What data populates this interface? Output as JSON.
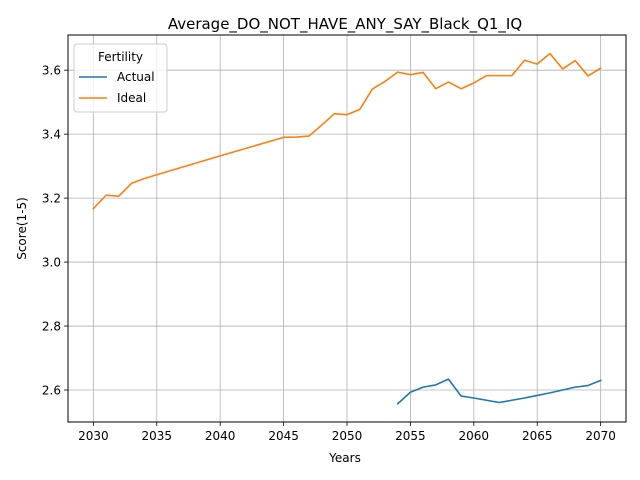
{
  "chart_data": {
    "type": "line",
    "title": "Average_DO_NOT_HAVE_ANY_SAY_Black_Q1_IQ",
    "xlabel": "Years",
    "ylabel": "Score(1-5)",
    "xlim": [
      2028,
      2072
    ],
    "ylim": [
      2.5,
      3.71
    ],
    "xticks": [
      2030,
      2035,
      2040,
      2045,
      2050,
      2055,
      2060,
      2065,
      2070
    ],
    "xtick_labels": [
      "2030",
      "2035",
      "2040",
      "2045",
      "2050",
      "2055",
      "2060",
      "2065",
      "2070"
    ],
    "yticks": [
      2.6,
      2.8,
      3.0,
      3.2,
      3.4,
      3.6
    ],
    "ytick_labels": [
      "2.6",
      "2.8",
      "3.0",
      "3.2",
      "3.4",
      "3.6"
    ],
    "grid": true,
    "legend": {
      "title": "Fertility",
      "position": "top-left"
    },
    "series": [
      {
        "name": "Actual",
        "color": "#1f77b4",
        "points": [
          [
            2054,
            2.557
          ],
          [
            2055,
            2.593
          ],
          [
            2056,
            2.609
          ],
          [
            2057,
            2.616
          ],
          [
            2058,
            2.634
          ],
          [
            2059,
            2.581
          ],
          [
            2060,
            2.575
          ],
          [
            2061,
            2.568
          ],
          [
            2062,
            2.561
          ],
          [
            2063,
            2.568
          ],
          [
            2064,
            2.575
          ],
          [
            2065,
            2.583
          ],
          [
            2066,
            2.591
          ],
          [
            2067,
            2.6
          ],
          [
            2068,
            2.609
          ],
          [
            2069,
            2.614
          ],
          [
            2070,
            2.63
          ]
        ]
      },
      {
        "name": "Ideal",
        "color": "#ff7f0e",
        "points": [
          [
            2030,
            3.167
          ],
          [
            2031,
            3.209
          ],
          [
            2032,
            3.206
          ],
          [
            2033,
            3.246
          ],
          [
            2034,
            3.261
          ],
          [
            2035,
            3.273
          ],
          [
            2040,
            3.332
          ],
          [
            2045,
            3.39
          ],
          [
            2046,
            3.391
          ],
          [
            2047,
            3.394
          ],
          [
            2048,
            3.428
          ],
          [
            2049,
            3.464
          ],
          [
            2050,
            3.461
          ],
          [
            2051,
            3.477
          ],
          [
            2052,
            3.541
          ],
          [
            2053,
            3.565
          ],
          [
            2054,
            3.594
          ],
          [
            2055,
            3.586
          ],
          [
            2056,
            3.593
          ],
          [
            2057,
            3.542
          ],
          [
            2058,
            3.563
          ],
          [
            2059,
            3.542
          ],
          [
            2060,
            3.56
          ],
          [
            2061,
            3.583
          ],
          [
            2062,
            3.583
          ],
          [
            2063,
            3.583
          ],
          [
            2064,
            3.631
          ],
          [
            2065,
            3.619
          ],
          [
            2066,
            3.652
          ],
          [
            2067,
            3.604
          ],
          [
            2068,
            3.63
          ],
          [
            2069,
            3.582
          ],
          [
            2070,
            3.606
          ]
        ]
      }
    ]
  }
}
